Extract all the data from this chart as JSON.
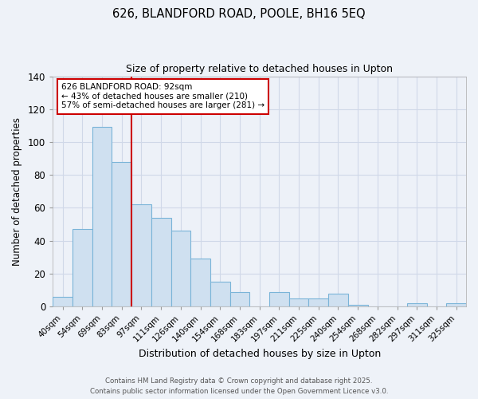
{
  "title": "626, BLANDFORD ROAD, POOLE, BH16 5EQ",
  "subtitle": "Size of property relative to detached houses in Upton",
  "xlabel": "Distribution of detached houses by size in Upton",
  "ylabel": "Number of detached properties",
  "bar_labels": [
    "40sqm",
    "54sqm",
    "69sqm",
    "83sqm",
    "97sqm",
    "111sqm",
    "126sqm",
    "140sqm",
    "154sqm",
    "168sqm",
    "183sqm",
    "197sqm",
    "211sqm",
    "225sqm",
    "240sqm",
    "254sqm",
    "268sqm",
    "282sqm",
    "297sqm",
    "311sqm",
    "325sqm"
  ],
  "bar_values": [
    6,
    47,
    109,
    88,
    62,
    54,
    46,
    29,
    15,
    9,
    0,
    9,
    5,
    5,
    8,
    1,
    0,
    0,
    2,
    0,
    2
  ],
  "bar_color": "#cfe0f0",
  "bar_edge_color": "#7ab4d8",
  "ylim": [
    0,
    140
  ],
  "yticks": [
    0,
    20,
    40,
    60,
    80,
    100,
    120,
    140
  ],
  "vline_x_idx": 4,
  "vline_color": "#cc0000",
  "annotation_title": "626 BLANDFORD ROAD: 92sqm",
  "annotation_line1": "← 43% of detached houses are smaller (210)",
  "annotation_line2": "57% of semi-detached houses are larger (281) →",
  "footer1": "Contains HM Land Registry data © Crown copyright and database right 2025.",
  "footer2": "Contains public sector information licensed under the Open Government Licence v3.0.",
  "background_color": "#eef2f8",
  "grid_color": "#d0d8e8",
  "plot_bg_color": "#edf1f8",
  "figsize": [
    6.0,
    5.0
  ],
  "dpi": 100
}
